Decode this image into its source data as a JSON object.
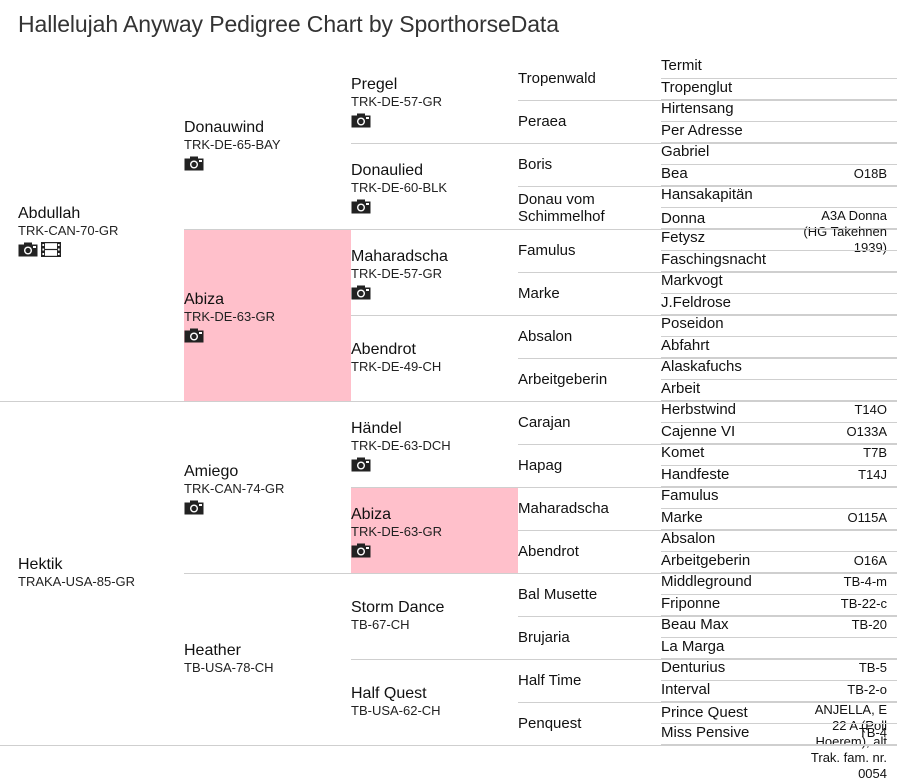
{
  "title": "Hallelujah Anyway Pedigree Chart by SporthorseData",
  "icons": {
    "camera": "camera-icon",
    "film": "film-icon"
  },
  "colors": {
    "highlight": "#ffc0cb",
    "rule": "#cfcfcf"
  },
  "gen1": [
    {
      "name": "Abdullah",
      "code": "TRK-CAN-70-GR",
      "photo": true,
      "video": true
    },
    {
      "name": "Hektik",
      "code": "TRAKA-USA-85-GR",
      "photo": false,
      "video": false
    }
  ],
  "gen2": [
    {
      "name": "Donauwind",
      "code": "TRK-DE-65-BAY",
      "photo": true
    },
    {
      "name": "Abiza",
      "code": "TRK-DE-63-GR",
      "photo": true,
      "highlight": true
    },
    {
      "name": "Amiego",
      "code": "TRK-CAN-74-GR",
      "photo": true
    },
    {
      "name": "Heather",
      "code": "TB-USA-78-CH",
      "photo": false
    }
  ],
  "gen3": [
    {
      "name": "Pregel",
      "code": "TRK-DE-57-GR",
      "photo": true
    },
    {
      "name": "Donaulied",
      "code": "TRK-DE-60-BLK",
      "photo": true
    },
    {
      "name": "Maharadscha",
      "code": "TRK-DE-57-GR",
      "photo": true
    },
    {
      "name": "Abendrot",
      "code": "TRK-DE-49-CH",
      "photo": false
    },
    {
      "name": "Händel",
      "code": "TRK-DE-63-DCH",
      "photo": true
    },
    {
      "name": "Abiza",
      "code": "TRK-DE-63-GR",
      "photo": true,
      "highlight": true
    },
    {
      "name": "Storm Dance",
      "code": "TB-67-CH",
      "photo": false
    },
    {
      "name": "Half Quest",
      "code": "TB-USA-62-CH",
      "photo": false
    }
  ],
  "gen4": [
    {
      "name": "Tropenwald"
    },
    {
      "name": "Peraea"
    },
    {
      "name": "Boris"
    },
    {
      "name": "Donau vom Schimmelhof"
    },
    {
      "name": "Famulus"
    },
    {
      "name": "Marke"
    },
    {
      "name": "Absalon"
    },
    {
      "name": "Arbeitgeberin"
    },
    {
      "name": "Carajan"
    },
    {
      "name": "Hapag"
    },
    {
      "name": "Maharadscha"
    },
    {
      "name": "Abendrot"
    },
    {
      "name": "Bal Musette"
    },
    {
      "name": "Brujaria"
    },
    {
      "name": "Half Time"
    },
    {
      "name": "Penquest"
    }
  ],
  "gen5": [
    {
      "name": "Termit",
      "code": ""
    },
    {
      "name": "Tropenglut",
      "code": ""
    },
    {
      "name": "Hirtensang",
      "code": ""
    },
    {
      "name": "Per Adresse",
      "code": ""
    },
    {
      "name": "Gabriel",
      "code": ""
    },
    {
      "name": "Bea",
      "code": "O18B"
    },
    {
      "name": "Hansakapitän",
      "code": ""
    },
    {
      "name": "Donna",
      "code": "A3A Donna (HG Takehnen 1939)"
    },
    {
      "name": "Fetysz",
      "code": ""
    },
    {
      "name": "Faschingsnacht",
      "code": ""
    },
    {
      "name": "Markvogt",
      "code": ""
    },
    {
      "name": "J.Feldrose",
      "code": ""
    },
    {
      "name": "Poseidon",
      "code": ""
    },
    {
      "name": "Abfahrt",
      "code": ""
    },
    {
      "name": "Alaskafuchs",
      "code": ""
    },
    {
      "name": "Arbeit",
      "code": ""
    },
    {
      "name": "Herbstwind",
      "code": "T14O"
    },
    {
      "name": "Cajenne VI",
      "code": "O133A"
    },
    {
      "name": "Komet",
      "code": "T7B"
    },
    {
      "name": "Handfeste",
      "code": "T14J"
    },
    {
      "name": "Famulus",
      "code": ""
    },
    {
      "name": "Marke",
      "code": "O115A"
    },
    {
      "name": "Absalon",
      "code": ""
    },
    {
      "name": "Arbeitgeberin",
      "code": "O16A"
    },
    {
      "name": "Middleground",
      "code": "TB-4-m"
    },
    {
      "name": "Friponne",
      "code": "TB-22-c"
    },
    {
      "name": "Beau Max",
      "code": "TB-20"
    },
    {
      "name": "La Marga",
      "code": ""
    },
    {
      "name": "Denturius",
      "code": "TB-5"
    },
    {
      "name": "Interval",
      "code": "TB-2-o"
    },
    {
      "name": "Prince Quest",
      "code": "ANJELLA, E 22 A (Poll Hoerem), alt Trak. fam. nr. 0054"
    },
    {
      "name": "Miss Pensive",
      "code": "TB-4"
    }
  ]
}
